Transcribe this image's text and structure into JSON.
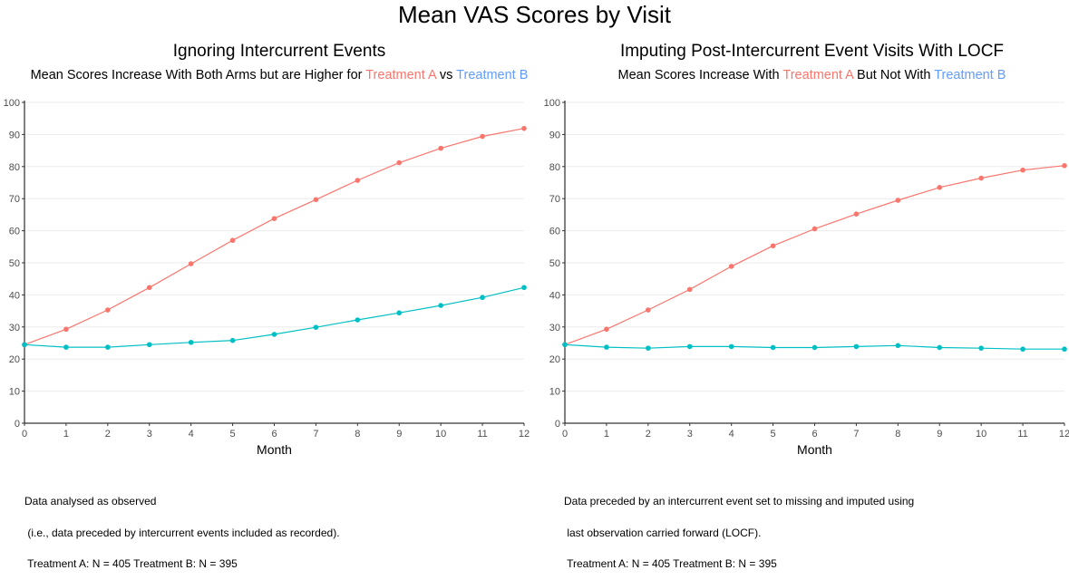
{
  "title": "Mean VAS Scores by Visit",
  "colors": {
    "treatment_a": "#F8766D",
    "treatment_b": "#00BFC4",
    "subtitle_b": "#619CFF",
    "grid": "#EBEBEB"
  },
  "panels": [
    {
      "title": "Ignoring Intercurrent Events",
      "subtitle": {
        "pre": "Mean Scores Increase With Both Arms but are Higher for ",
        "a": "Treatment A",
        "mid": " vs ",
        "b": "Treatment B",
        "post": ""
      },
      "caption": [
        "Data analysed as observed",
        " (i.e., data preceded by intercurrent events included as recorded).",
        " Treatment A: N = 405 Treatment B: N = 395"
      ]
    },
    {
      "title": "Imputing Post-Intercurrent Event Visits With LOCF",
      "subtitle": {
        "pre": "Mean Scores Increase With ",
        "a": "Treatment A",
        "mid": " But Not With ",
        "b": "Treatment B",
        "post": ""
      },
      "caption": [
        "Data preceded by an intercurrent event set to missing and imputed using",
        " last observation carried forward (LOCF).",
        " Treatment A: N = 405 Treatment B: N = 395"
      ]
    }
  ],
  "chart_data": [
    {
      "type": "line",
      "title": "Ignoring Intercurrent Events",
      "xlabel": "Month",
      "ylabel": "",
      "x": [
        0,
        1,
        2,
        3,
        4,
        5,
        6,
        7,
        8,
        9,
        10,
        11,
        12
      ],
      "xlim": [
        0,
        12
      ],
      "ylim": [
        0,
        100
      ],
      "yticks": [
        0,
        10,
        20,
        30,
        40,
        50,
        60,
        70,
        80,
        90,
        100
      ],
      "grid": "horizontal",
      "series": [
        {
          "name": "Treatment A",
          "color": "#F8766D",
          "values": [
            24.5,
            29.3,
            35.3,
            42.3,
            49.7,
            57.0,
            63.8,
            69.7,
            75.7,
            81.2,
            85.7,
            89.4,
            91.9
          ]
        },
        {
          "name": "Treatment B",
          "color": "#00BFC4",
          "values": [
            24.5,
            23.7,
            23.7,
            24.5,
            25.2,
            25.8,
            27.7,
            29.9,
            32.2,
            34.4,
            36.7,
            39.2,
            42.3
          ]
        }
      ]
    },
    {
      "type": "line",
      "title": "Imputing Post-Intercurrent Event Visits With LOCF",
      "xlabel": "Month",
      "ylabel": "",
      "x": [
        0,
        1,
        2,
        3,
        4,
        5,
        6,
        7,
        8,
        9,
        10,
        11,
        12
      ],
      "xlim": [
        0,
        12
      ],
      "ylim": [
        0,
        100
      ],
      "yticks": [
        0,
        10,
        20,
        30,
        40,
        50,
        60,
        70,
        80,
        90,
        100
      ],
      "grid": "horizontal",
      "series": [
        {
          "name": "Treatment A",
          "color": "#F8766D",
          "values": [
            24.5,
            29.3,
            35.3,
            41.7,
            48.9,
            55.3,
            60.6,
            65.2,
            69.5,
            73.5,
            76.4,
            78.9,
            80.3
          ]
        },
        {
          "name": "Treatment B",
          "color": "#00BFC4",
          "values": [
            24.5,
            23.7,
            23.4,
            23.9,
            23.9,
            23.6,
            23.6,
            23.9,
            24.2,
            23.6,
            23.4,
            23.1,
            23.1
          ]
        }
      ]
    }
  ]
}
